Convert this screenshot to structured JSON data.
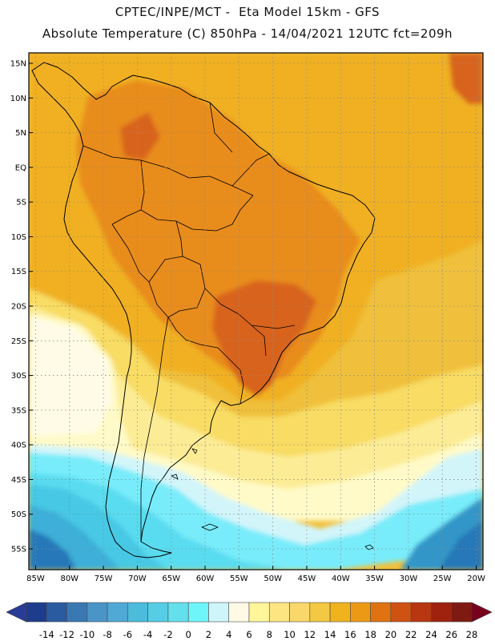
{
  "header": {
    "line1": "CPTEC/INPE/MCT -  Eta Model 15km - GFS",
    "line2": "Absolute Temperature (C) 850hPa - 14/04/2021 12UTC fct=209h"
  },
  "map": {
    "variable": "Absolute Temperature",
    "units": "C",
    "level": "850hPa",
    "lon_range": [
      -86,
      -19
    ],
    "lat_range": [
      -58,
      16.5
    ],
    "lat_ticks": [
      {
        "value": 15,
        "label": "15N"
      },
      {
        "value": 10,
        "label": "10N"
      },
      {
        "value": 5,
        "label": "5N"
      },
      {
        "value": 0,
        "label": "EQ"
      },
      {
        "value": -5,
        "label": "5S"
      },
      {
        "value": -10,
        "label": "10S"
      },
      {
        "value": -15,
        "label": "15S"
      },
      {
        "value": -20,
        "label": "20S"
      },
      {
        "value": -25,
        "label": "25S"
      },
      {
        "value": -30,
        "label": "30S"
      },
      {
        "value": -35,
        "label": "35S"
      },
      {
        "value": -40,
        "label": "40S"
      },
      {
        "value": -45,
        "label": "45S"
      },
      {
        "value": -50,
        "label": "50S"
      },
      {
        "value": -55,
        "label": "55S"
      }
    ],
    "lon_ticks": [
      {
        "value": -85,
        "label": "85W"
      },
      {
        "value": -80,
        "label": "80W"
      },
      {
        "value": -75,
        "label": "75W"
      },
      {
        "value": -70,
        "label": "70W"
      },
      {
        "value": -65,
        "label": "65W"
      },
      {
        "value": -60,
        "label": "60W"
      },
      {
        "value": -55,
        "label": "55W"
      },
      {
        "value": -50,
        "label": "50W"
      },
      {
        "value": -45,
        "label": "45W"
      },
      {
        "value": -40,
        "label": "40W"
      },
      {
        "value": -35,
        "label": "35W"
      },
      {
        "value": -30,
        "label": "30W"
      },
      {
        "value": -25,
        "label": "25W"
      },
      {
        "value": -20,
        "label": "20W"
      }
    ],
    "field_colors": {
      "ocean_warm": "#f0c03c",
      "band_16_18": "#f0b020",
      "band_18_20": "#e88c1c",
      "band_20_22": "#d8641a",
      "band_12_14": "#f8dc64",
      "band_10_12": "#fcec96",
      "band_8_10": "#fffac8",
      "band_6_8": "#fffbe6",
      "band_4_6": "#d2f5fa",
      "band_2_4": "#78ecfa",
      "band_0_2": "#5adcf0",
      "band_m2_0": "#46c8e4",
      "band_m4_m2": "#3cafd8",
      "band_m6_m4": "#3296c8",
      "band_m8_m6": "#2878b8",
      "land_border": "#000000"
    }
  },
  "colorbar": {
    "labels": [
      "-14",
      "-12",
      "-10",
      "-8",
      "-6",
      "-4",
      "-2",
      "0",
      "2",
      "4",
      "6",
      "8",
      "10",
      "12",
      "14",
      "16",
      "18",
      "20",
      "22",
      "24",
      "26",
      "28"
    ],
    "colors": [
      "#1e3c8c",
      "#2a5aa0",
      "#3a78b4",
      "#4a94c8",
      "#4fa9d4",
      "#4bbcdc",
      "#55cde4",
      "#64e0ec",
      "#6ef5fa",
      "#cdf5fa",
      "#fffae6",
      "#fff59a",
      "#fde582",
      "#f9d76a",
      "#f3c842",
      "#f0b31e",
      "#ec9a16",
      "#e07212",
      "#d05212",
      "#b83610",
      "#9e220e",
      "#7e1a12"
    ],
    "under_color": "#283c96",
    "over_color": "#78001e"
  }
}
